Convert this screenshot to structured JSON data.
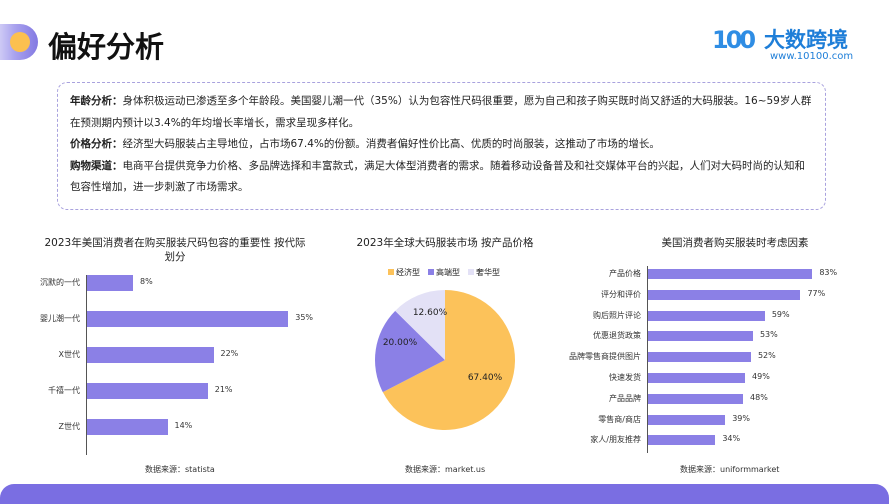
{
  "header": {
    "title": "偏好分析",
    "logo_name": "大数跨境",
    "logo_url": "www.10100.com",
    "logo_mark": "100"
  },
  "summary": [
    {
      "label": "年龄分析：",
      "text": "身体积极运动已渗透至多个年龄段。美国婴儿潮一代（35%）认为包容性尺码很重要，愿为自己和孩子购买既时尚又舒适的大码服装。16~59岁人群在预测期内预计以3.4%的年均增长率增长，需求呈现多样化。"
    },
    {
      "label": "价格分析：",
      "text": "经济型大码服装占主导地位，占市场67.4%的份额。消费者偏好性价比高、优质的时尚服装，这推动了市场的增长。"
    },
    {
      "label": "购物渠道：",
      "text": "电商平台提供竞争力价格、多品牌选择和丰富款式，满足大体型消费者的需求。随着移动设备普及和社交媒体平台的兴起，人们对大码时尚的认知和包容性增加，进一步刺激了市场需求。"
    }
  ],
  "chart_data": [
    {
      "type": "bar",
      "orientation": "horizontal",
      "title": "2023年美国消费者在购买服装尺码包容的重要性 按代际划分",
      "categories": [
        "沉默的一代",
        "婴儿潮一代",
        "X世代",
        "千禧一代",
        "Z世代"
      ],
      "values": [
        8,
        35,
        22,
        21,
        14
      ],
      "value_labels": [
        "8%",
        "35%",
        "22%",
        "21%",
        "14%"
      ],
      "unit": "%",
      "source": "数据来源：statista"
    },
    {
      "type": "pie",
      "title": "2023年全球大码服装市场 按产品价格",
      "categories": [
        "经济型",
        "高端型",
        "奢华型"
      ],
      "values": [
        67.4,
        20.0,
        12.6
      ],
      "value_labels": [
        "67.40%",
        "20.00%",
        "12.60%"
      ],
      "colors": [
        "#fcc25a",
        "#8b80e6",
        "#e3e1f6"
      ],
      "legend": "top",
      "source": "数据来源：market.us"
    },
    {
      "type": "bar",
      "orientation": "horizontal",
      "title": "美国消费者购买服装时考虑因素",
      "categories": [
        "产品价格",
        "评分和评价",
        "购后照片评论",
        "优惠退货政策",
        "品牌零售商提供图片",
        "快速发货",
        "产品品牌",
        "零售商/商店",
        "家人/朋友推荐"
      ],
      "values": [
        83,
        77,
        59,
        53,
        52,
        49,
        48,
        39,
        34
      ],
      "value_labels": [
        "83%",
        "77%",
        "59%",
        "53%",
        "52%",
        "49%",
        "48%",
        "39%",
        "34%"
      ],
      "unit": "%",
      "source": "数据来源：uniformmarket"
    }
  ],
  "colors": {
    "bar": "#8b80e6",
    "footer": "#7a6ee2",
    "accent": "#fcc04f"
  }
}
